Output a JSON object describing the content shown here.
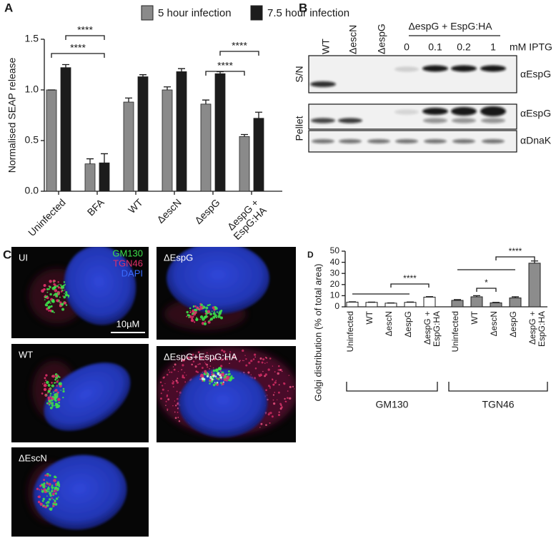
{
  "chart_data": [
    {
      "type": "bar",
      "panel": "A",
      "ylabel": "Normalised SEAP release",
      "categories": [
        "Uninfected",
        "BFA",
        "WT",
        "ΔescN",
        "ΔespG",
        "ΔespG + EspG:HA"
      ],
      "series": [
        {
          "name": "5 hour infection",
          "color": "#8a8a8a",
          "values": [
            1.0,
            0.27,
            0.88,
            1.0,
            0.86,
            0.54
          ],
          "errors": [
            0,
            0.05,
            0.04,
            0.03,
            0.04,
            0.02
          ]
        },
        {
          "name": "7.5 hour infection",
          "color": "#1c1c1c",
          "values": [
            1.22,
            0.28,
            1.13,
            1.18,
            1.16,
            0.72
          ],
          "errors": [
            0.03,
            0.09,
            0.02,
            0.03,
            0.02,
            0.06
          ]
        }
      ],
      "ylim": [
        0,
        1.5
      ],
      "yticks": [
        {
          "value": 0,
          "label": "0.0"
        },
        0.5,
        {
          "value": 1,
          "label": "1.0"
        },
        1.5
      ],
      "significance": [
        "****",
        "****",
        "****",
        "****"
      ]
    },
    {
      "type": "grouped-bar",
      "panel": "D",
      "ylabel": "Golgi distribution (% of total area)",
      "groups": [
        {
          "name": "GM130",
          "color": "#ffffff",
          "categories": [
            "Uninfected",
            "WT",
            "ΔescN",
            "ΔespG",
            "ΔespG + EspG:HA"
          ],
          "values": [
            4.2,
            4.0,
            3.3,
            4.0,
            8.7
          ],
          "errors": [
            0.3,
            0.2,
            0.2,
            0.3,
            0.4
          ]
        },
        {
          "name": "TGN46",
          "color": "#8c8c8c",
          "categories": [
            "Uninfected",
            "WT",
            "ΔescN",
            "ΔespG",
            "ΔespG + EspG:HA"
          ],
          "values": [
            5.8,
            9.0,
            3.6,
            8.0,
            39.2
          ],
          "errors": [
            0.7,
            1.0,
            0.4,
            1.0,
            2.0
          ]
        }
      ],
      "ylim": [
        0,
        50
      ],
      "yticks": [
        0,
        10,
        20,
        30,
        40,
        50
      ],
      "significance": [
        "****",
        "*",
        "****"
      ]
    }
  ],
  "blot": {
    "panel": "B",
    "lanes": [
      "WT",
      "ΔescN",
      "ΔespG"
    ],
    "treatment": "ΔespG + EspG:HA",
    "doses": [
      "0",
      "0.1",
      "0.2",
      "1"
    ],
    "dose_unit": "mM IPTG",
    "rows": [
      "S/N",
      "Pellet"
    ],
    "antibodies": [
      "αEspG",
      "αEspG",
      "αDnaK"
    ]
  },
  "micrographs": {
    "panel": "C",
    "legend": [
      "GM130",
      "TGN46",
      "DAPI"
    ],
    "scale_bar": "10µM",
    "images": [
      "UI",
      "ΔEspG",
      "WT",
      "ΔEspG+EspG:HA",
      "ΔEscN"
    ]
  }
}
